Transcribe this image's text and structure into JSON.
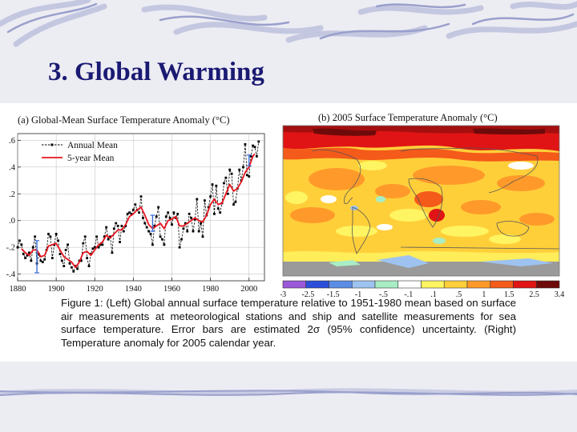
{
  "slide": {
    "title": "3. Global Warming"
  },
  "caption": {
    "label": "Figure 1:",
    "text": "(Left) Global annual surface temperature relative to 1951-1980 mean based on surface air measurements at meteorological stations and ship and satellite measurements for sea surface temperature. Error bars are estimated 2σ (95% confidence) uncertainty. (Right) Temperature anomaly for 2005 calendar year."
  },
  "chart_data": [
    {
      "type": "line",
      "title": "(a)  Global-Mean Surface Temperature Anomaly (°C)",
      "xlim": [
        1880,
        2008
      ],
      "ylim": [
        -0.45,
        0.65
      ],
      "x_ticks": [
        "1880",
        "1900",
        "1920",
        "1940",
        "1960",
        "1980",
        "2000"
      ],
      "y_ticks": [
        ".6",
        ".4",
        ".2",
        ".0",
        "-.2",
        "-.4"
      ],
      "legend": "top-left",
      "colors": {
        "annual": "#000000",
        "five_year": "#e8141e",
        "error_bars": "#3a6fd8"
      },
      "series": [
        {
          "name": "Annual Mean",
          "x": [
            1880,
            1881,
            1882,
            1883,
            1884,
            1885,
            1886,
            1887,
            1888,
            1889,
            1890,
            1891,
            1892,
            1893,
            1894,
            1895,
            1896,
            1897,
            1898,
            1899,
            1900,
            1901,
            1902,
            1903,
            1904,
            1905,
            1906,
            1907,
            1908,
            1909,
            1910,
            1911,
            1912,
            1913,
            1914,
            1915,
            1916,
            1917,
            1918,
            1919,
            1920,
            1921,
            1922,
            1923,
            1924,
            1925,
            1926,
            1927,
            1928,
            1929,
            1930,
            1931,
            1932,
            1933,
            1934,
            1935,
            1936,
            1937,
            1938,
            1939,
            1940,
            1941,
            1942,
            1943,
            1944,
            1945,
            1946,
            1947,
            1948,
            1949,
            1950,
            1951,
            1952,
            1953,
            1954,
            1955,
            1956,
            1957,
            1958,
            1959,
            1960,
            1961,
            1962,
            1963,
            1964,
            1965,
            1966,
            1967,
            1968,
            1969,
            1970,
            1971,
            1972,
            1973,
            1974,
            1975,
            1976,
            1977,
            1978,
            1979,
            1980,
            1981,
            1982,
            1983,
            1984,
            1985,
            1986,
            1987,
            1988,
            1989,
            1990,
            1991,
            1992,
            1993,
            1994,
            1995,
            1996,
            1997,
            1998,
            1999,
            2000,
            2001,
            2002,
            2003,
            2004,
            2005
          ],
          "values": [
            -0.2,
            -0.15,
            -0.18,
            -0.25,
            -0.28,
            -0.26,
            -0.24,
            -0.3,
            -0.2,
            -0.12,
            -0.32,
            -0.25,
            -0.3,
            -0.31,
            -0.29,
            -0.22,
            -0.1,
            -0.12,
            -0.28,
            -0.18,
            -0.1,
            -0.15,
            -0.25,
            -0.3,
            -0.34,
            -0.22,
            -0.18,
            -0.32,
            -0.35,
            -0.38,
            -0.34,
            -0.36,
            -0.3,
            -0.3,
            -0.17,
            -0.12,
            -0.28,
            -0.34,
            -0.25,
            -0.21,
            -0.2,
            -0.12,
            -0.2,
            -0.18,
            -0.18,
            -0.12,
            -0.05,
            -0.14,
            -0.12,
            -0.24,
            -0.06,
            -0.02,
            -0.04,
            -0.16,
            -0.04,
            -0.08,
            -0.04,
            0.05,
            0.06,
            0.05,
            0.08,
            0.12,
            0.08,
            0.06,
            0.18,
            0.02,
            -0.02,
            -0.05,
            -0.08,
            -0.1,
            -0.18,
            -0.04,
            0.03,
            0.1,
            -0.12,
            -0.14,
            -0.18,
            0.03,
            0.06,
            0.02,
            -0.03,
            0.06,
            0.02,
            0.05,
            -0.2,
            -0.14,
            -0.06,
            -0.02,
            -0.08,
            0.05,
            0.02,
            -0.08,
            0.01,
            0.16,
            -0.08,
            -0.02,
            -0.12,
            0.15,
            0.04,
            0.1,
            0.18,
            0.27,
            0.05,
            0.26,
            0.09,
            0.06,
            0.13,
            0.28,
            0.32,
            0.2,
            0.38,
            0.35,
            0.12,
            0.14,
            0.24,
            0.38,
            0.3,
            0.4,
            0.57,
            0.34,
            0.33,
            0.48,
            0.56,
            0.55,
            0.48,
            0.59
          ]
        },
        {
          "name": "5-year Mean",
          "x": [
            1882,
            1884,
            1886,
            1888,
            1890,
            1892,
            1894,
            1896,
            1898,
            1900,
            1902,
            1904,
            1906,
            1908,
            1910,
            1912,
            1914,
            1916,
            1918,
            1920,
            1922,
            1924,
            1926,
            1928,
            1930,
            1932,
            1934,
            1936,
            1938,
            1940,
            1942,
            1944,
            1946,
            1948,
            1950,
            1952,
            1954,
            1956,
            1958,
            1960,
            1962,
            1964,
            1966,
            1968,
            1970,
            1972,
            1974,
            1976,
            1978,
            1980,
            1982,
            1984,
            1986,
            1988,
            1990,
            1992,
            1994,
            1996,
            1998,
            2000,
            2002,
            2003
          ],
          "values": [
            -0.21,
            -0.24,
            -0.26,
            -0.22,
            -0.22,
            -0.27,
            -0.26,
            -0.19,
            -0.18,
            -0.17,
            -0.22,
            -0.27,
            -0.29,
            -0.31,
            -0.35,
            -0.31,
            -0.24,
            -0.23,
            -0.26,
            -0.22,
            -0.18,
            -0.16,
            -0.11,
            -0.13,
            -0.1,
            -0.07,
            -0.07,
            -0.03,
            0.03,
            0.05,
            0.08,
            0.1,
            0.04,
            -0.03,
            -0.06,
            -0.04,
            -0.02,
            -0.06,
            0.0,
            0.01,
            0.03,
            -0.04,
            -0.04,
            -0.02,
            0.0,
            0.02,
            0.0,
            -0.01,
            0.04,
            0.12,
            0.16,
            0.12,
            0.13,
            0.2,
            0.27,
            0.22,
            0.24,
            0.29,
            0.36,
            0.4,
            0.48,
            0.5
          ]
        }
      ],
      "error_bars": [
        {
          "x": 1890,
          "value": -0.27,
          "half_width": 0.12
        },
        {
          "x": 1950,
          "value": -0.02,
          "half_width": 0.06
        },
        {
          "x": 2000,
          "value": 0.45,
          "half_width": 0.04
        }
      ]
    },
    {
      "type": "heatmap",
      "title": "(b) 2005 Surface Temperature Anomaly (°C)",
      "colorbar": {
        "tick_labels": [
          "-3",
          "-2.5",
          "-1.5",
          "-1",
          "-.5",
          "-.1",
          ".1",
          ".5",
          "1",
          "1.5",
          "2.5",
          "3.4"
        ],
        "colors": [
          "#9b58d8",
          "#2b4fd8",
          "#5c8de6",
          "#9ec3f0",
          "#a8edc4",
          "#ffffff",
          "#fff462",
          "#ffcf3a",
          "#ff9a2a",
          "#f45a1a",
          "#e01414",
          "#6e0a0a"
        ]
      },
      "colors": {
        "land_outline": "#555555",
        "no_data": "#9a9a9a"
      }
    }
  ]
}
